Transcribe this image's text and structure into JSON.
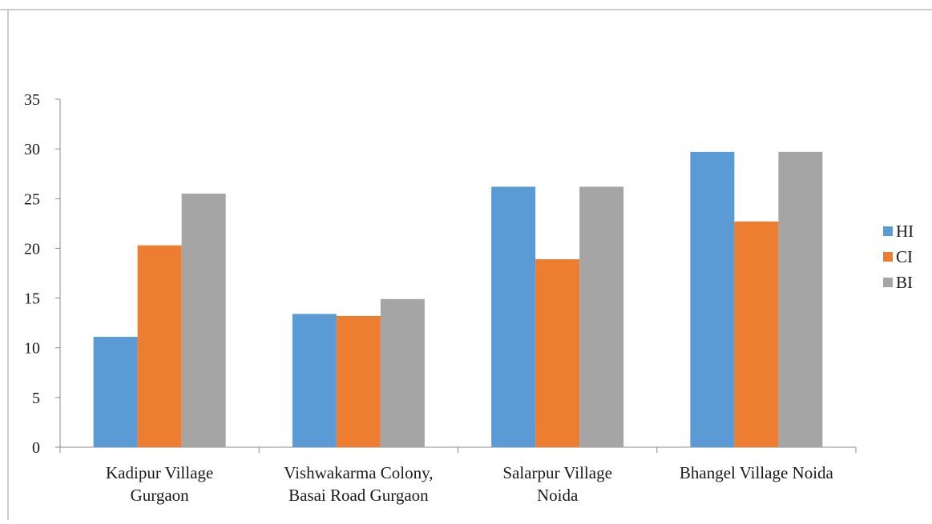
{
  "chart_data": {
    "type": "bar",
    "categories": [
      [
        "Kadipur Village",
        "Gurgaon"
      ],
      [
        "Vishwakarma Colony,",
        "Basai Road Gurgaon"
      ],
      [
        "Salarpur Village",
        "Noida"
      ],
      [
        "Bhangel Village Noida"
      ]
    ],
    "series": [
      {
        "name": "HI",
        "color": "#5b9bd5",
        "values": [
          11.1,
          13.4,
          26.2,
          29.7
        ]
      },
      {
        "name": "CI",
        "color": "#ed7d31",
        "values": [
          20.3,
          13.2,
          18.9,
          22.7
        ]
      },
      {
        "name": "BI",
        "color": "#a5a5a5",
        "values": [
          25.5,
          14.9,
          26.2,
          29.7
        ]
      }
    ],
    "ylim": [
      0,
      35
    ],
    "yticks": [
      0,
      5,
      10,
      15,
      20,
      25,
      30,
      35
    ],
    "grid": false,
    "legend": "right",
    "title": "",
    "xlabel": "",
    "ylabel": ""
  }
}
